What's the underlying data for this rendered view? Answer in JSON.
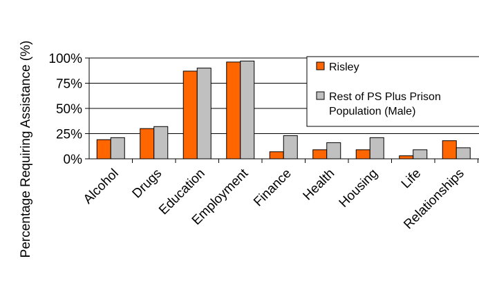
{
  "chart_data": {
    "type": "bar",
    "title": "",
    "xlabel": "",
    "ylabel": "Percentage Requiring Assistance (%)",
    "ylim": [
      0,
      100
    ],
    "yticks": [
      "0%",
      "25%",
      "50%",
      "75%",
      "100%"
    ],
    "ytick_values": [
      0,
      25,
      50,
      75,
      100
    ],
    "grid": true,
    "legend_position": "top-right",
    "categories": [
      "Alcohol",
      "Drugs",
      "Education",
      "Employment",
      "Finance",
      "Health",
      "Housing",
      "Life",
      "Relationships"
    ],
    "series": [
      {
        "name": "Risley",
        "color": "#ff6600",
        "values": [
          19,
          30,
          87,
          96,
          7,
          9,
          9,
          3,
          18
        ]
      },
      {
        "name": "Rest of PS Plus Prison Population (Male)",
        "legend_lines": [
          "Rest of PS Plus Prison",
          "Population (Male)"
        ],
        "color": "#c0c0c0",
        "values": [
          21,
          32,
          90,
          97,
          23,
          16,
          21,
          9,
          11
        ]
      }
    ]
  }
}
